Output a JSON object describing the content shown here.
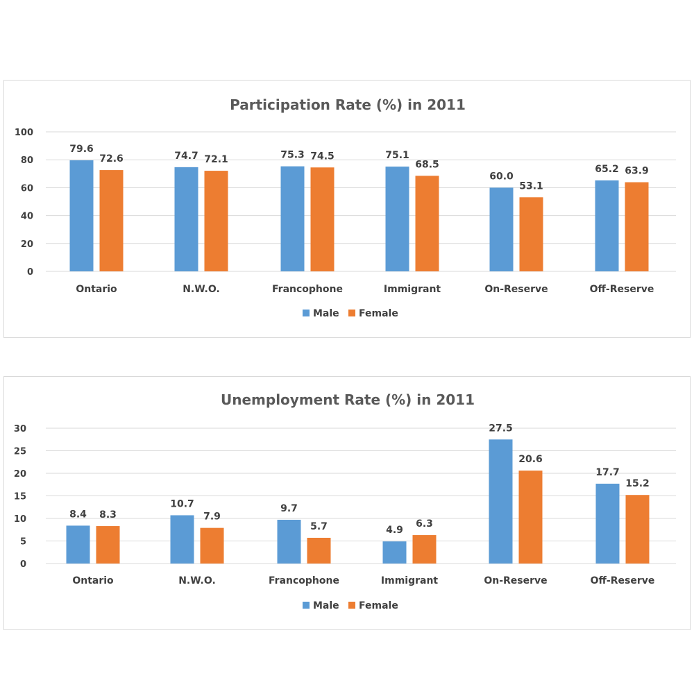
{
  "colors": {
    "male": "#5b9bd5",
    "female": "#ed7d31",
    "grid": "#d9d9d9",
    "text": "#404040"
  },
  "chart_data": [
    {
      "type": "bar",
      "title": "Participation Rate (%) in 2011",
      "xlabel": "",
      "ylabel": "",
      "categories": [
        "Ontario",
        "N.W.O.",
        "Francophone",
        "Immigrant",
        "On-Reserve",
        "Off-Reserve"
      ],
      "series": [
        {
          "name": "Male",
          "values": [
            79.6,
            74.7,
            75.3,
            75.1,
            60.0,
            65.2
          ]
        },
        {
          "name": "Female",
          "values": [
            72.6,
            72.1,
            74.5,
            68.5,
            53.1,
            63.9
          ]
        }
      ],
      "value_labels": [
        [
          "79.6",
          "74.7",
          "75.3",
          "75.1",
          "60.0",
          "65.2"
        ],
        [
          "72.6",
          "72.1",
          "74.5",
          "68.5",
          "53.1",
          "63.9"
        ]
      ],
      "ylim": [
        0,
        100
      ],
      "yticks": [
        0,
        20,
        40,
        60,
        80,
        100
      ],
      "grid": true,
      "legend": "bottom"
    },
    {
      "type": "bar",
      "title": "Unemployment Rate (%) in 2011",
      "xlabel": "",
      "ylabel": "",
      "categories": [
        "Ontario",
        "N.W.O.",
        "Francophone",
        "Immigrant",
        "On-Reserve",
        "Off-Reserve"
      ],
      "series": [
        {
          "name": "Male",
          "values": [
            8.4,
            10.7,
            9.7,
            4.9,
            27.5,
            17.7
          ]
        },
        {
          "name": "Female",
          "values": [
            8.3,
            7.9,
            5.7,
            6.3,
            20.6,
            15.2
          ]
        }
      ],
      "value_labels": [
        [
          "8.4",
          "10.7",
          "9.7",
          "4.9",
          "27.5",
          "17.7"
        ],
        [
          "8.3",
          "7.9",
          "5.7",
          "6.3",
          "20.6",
          "15.2"
        ]
      ],
      "ylim": [
        0,
        30
      ],
      "yticks": [
        0,
        5,
        10,
        15,
        20,
        25,
        30
      ],
      "grid": true,
      "legend": "bottom"
    }
  ]
}
